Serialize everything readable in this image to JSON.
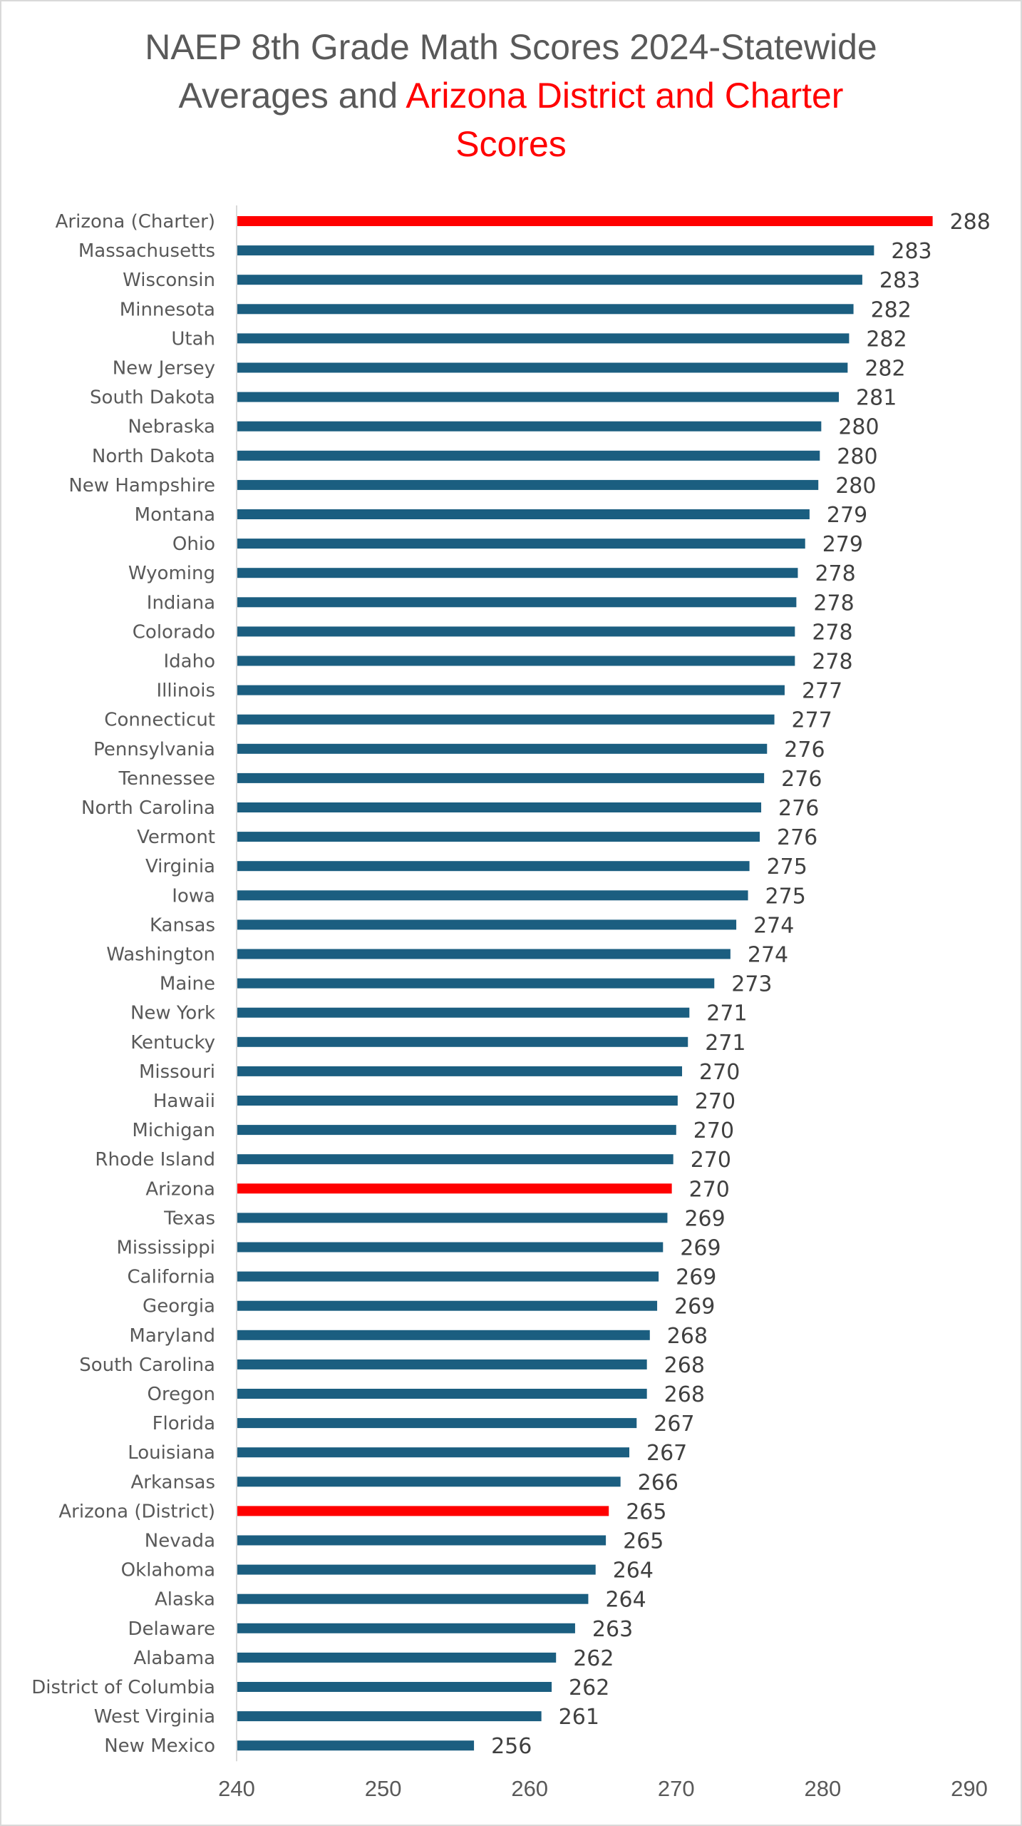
{
  "chart_data": {
    "type": "bar",
    "orientation": "horizontal",
    "title": "NAEP 8th Grade Math Scores 2024-Statewide Averages and Arizona District and Charter Scores",
    "title_parts": {
      "line1": "NAEP 8th Grade Math Scores 2024-Statewide",
      "line2_plain": "Averages and ",
      "line2_highlight": "Arizona District and Charter",
      "line3_highlight": "Scores"
    },
    "xlabel": "",
    "ylabel": "",
    "xlim": [
      240,
      290
    ],
    "xticks": [
      240,
      250,
      260,
      270,
      280,
      290
    ],
    "grid": false,
    "legend": "none",
    "colors": {
      "default": "#1b5e80",
      "highlight": "#ff0000"
    },
    "categories": [
      "Arizona (Charter)",
      "Massachusetts",
      "Wisconsin",
      "Minnesota",
      "Utah",
      "New Jersey",
      "South Dakota",
      "Nebraska",
      "North Dakota",
      "New Hampshire",
      "Montana",
      "Ohio",
      "Wyoming",
      "Indiana",
      "Colorado",
      "Idaho",
      "Illinois",
      "Connecticut",
      "Pennsylvania",
      "Tennessee",
      "North Carolina",
      "Vermont",
      "Virginia",
      "Iowa",
      "Kansas",
      "Washington",
      "Maine",
      "New York",
      "Kentucky",
      "Missouri",
      "Hawaii",
      "Michigan",
      "Rhode Island",
      "Arizona",
      "Texas",
      "Mississippi",
      "California",
      "Georgia",
      "Maryland",
      "South Carolina",
      "Oregon",
      "Florida",
      "Louisiana",
      "Arkansas",
      "Arizona (District)",
      "Nevada",
      "Oklahoma",
      "Alaska",
      "Delaware",
      "Alabama",
      "District of Columbia",
      "West Virginia",
      "New Mexico"
    ],
    "values": [
      287.5,
      283.5,
      282.7,
      282.1,
      281.8,
      281.7,
      281.1,
      279.9,
      279.8,
      279.7,
      279.1,
      278.8,
      278.3,
      278.2,
      278.1,
      278.1,
      277.4,
      276.7,
      276.2,
      276.0,
      275.8,
      275.7,
      275.0,
      274.9,
      274.1,
      273.7,
      272.6,
      270.9,
      270.8,
      270.4,
      270.1,
      270.0,
      269.8,
      269.7,
      269.4,
      269.1,
      268.8,
      268.7,
      268.2,
      268.0,
      268.0,
      267.3,
      266.8,
      266.2,
      265.4,
      265.2,
      264.5,
      264.0,
      263.1,
      261.8,
      261.5,
      260.8,
      256.2
    ],
    "data_labels": [
      "288",
      "283",
      "283",
      "282",
      "282",
      "282",
      "281",
      "280",
      "280",
      "280",
      "279",
      "279",
      "278",
      "278",
      "278",
      "278",
      "277",
      "277",
      "276",
      "276",
      "276",
      "276",
      "275",
      "275",
      "274",
      "274",
      "273",
      "271",
      "271",
      "270",
      "270",
      "270",
      "270",
      "270",
      "269",
      "269",
      "269",
      "269",
      "268",
      "268",
      "268",
      "267",
      "267",
      "266",
      "265",
      "265",
      "264",
      "264",
      "263",
      "262",
      "262",
      "261",
      "256"
    ],
    "highlighted": [
      "Arizona (Charter)",
      "Arizona",
      "Arizona (District)"
    ]
  }
}
